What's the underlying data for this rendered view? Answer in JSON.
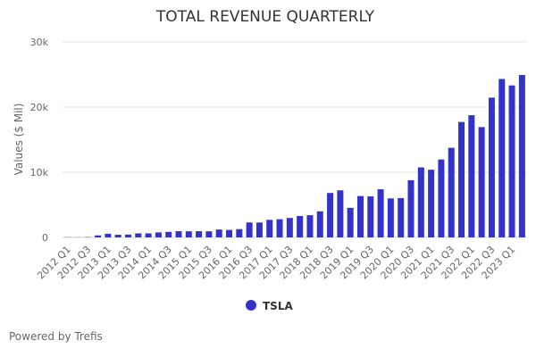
{
  "chart_data": {
    "type": "bar",
    "title": "TOTAL REVENUE QUARTERLY",
    "xlabel": "",
    "ylabel": "Values ($ Mil)",
    "ylim": [
      0,
      30000
    ],
    "yticks": [
      0,
      10000,
      20000,
      30000
    ],
    "ytick_labels": [
      "0",
      "10k",
      "20k",
      "30k"
    ],
    "grid": true,
    "legend_position": "bottom-center",
    "categories": [
      "2012 Q1",
      "2012 Q2",
      "2012 Q3",
      "2012 Q4",
      "2013 Q1",
      "2013 Q2",
      "2013 Q3",
      "2013 Q4",
      "2014 Q1",
      "2014 Q2",
      "2014 Q3",
      "2014 Q4",
      "2015 Q1",
      "2015 Q2",
      "2015 Q3",
      "2015 Q4",
      "2016 Q1",
      "2016 Q2",
      "2016 Q3",
      "2016 Q4",
      "2017 Q1",
      "2017 Q2",
      "2017 Q3",
      "2017 Q4",
      "2018 Q1",
      "2018 Q2",
      "2018 Q3",
      "2018 Q4",
      "2019 Q1",
      "2019 Q2",
      "2019 Q3",
      "2019 Q4",
      "2020 Q1",
      "2020 Q2",
      "2020 Q3",
      "2020 Q4",
      "2021 Q1",
      "2021 Q2",
      "2021 Q3",
      "2021 Q4",
      "2022 Q1",
      "2022 Q2",
      "2022 Q3",
      "2022 Q4",
      "2023 Q1",
      "2023 Q2"
    ],
    "xtick_labels": [
      "2012 Q1",
      "2012 Q3",
      "2013 Q1",
      "2013 Q3",
      "2014 Q1",
      "2014 Q3",
      "2015 Q1",
      "2015 Q3",
      "2016 Q1",
      "2016 Q3",
      "2017 Q1",
      "2017 Q3",
      "2018 Q1",
      "2018 Q3",
      "2019 Q1",
      "2019 Q3",
      "2020 Q1",
      "2020 Q3",
      "2021 Q1",
      "2021 Q3",
      "2022 Q1",
      "2022 Q3",
      "2023 Q1"
    ],
    "series": [
      {
        "name": "TSLA",
        "color": "#3333cc",
        "values": [
          30,
          27,
          50,
          306,
          562,
          405,
          431,
          615,
          621,
          769,
          852,
          957,
          940,
          955,
          937,
          1214,
          1147,
          1270,
          2298,
          2285,
          2696,
          2790,
          2985,
          3288,
          3409,
          4002,
          6824,
          7226,
          4541,
          6350,
          6303,
          7384,
          5985,
          6036,
          8771,
          10744,
          10389,
          11958,
          13757,
          17719,
          18756,
          16934,
          21454,
          24318,
          23329,
          24927
        ]
      }
    ]
  },
  "footer": "Powered by Trefis"
}
